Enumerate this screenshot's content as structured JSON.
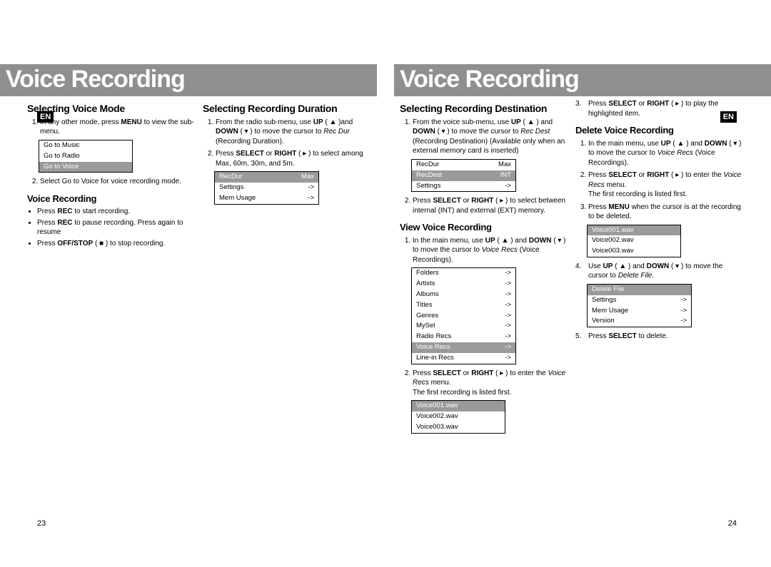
{
  "header": "Voice Recording",
  "en_badge": "EN",
  "page_left": "23",
  "page_right": "24",
  "sec_voice_mode": {
    "title": "Selecting Voice Mode",
    "steps": [
      "In any other mode, press <b>MENU</b> to view the sub-menu.",
      "Select Go to Voice for voice recording mode."
    ],
    "menu": [
      "Go to Music",
      "Go to Radio",
      "Go to Voice"
    ],
    "menu_highlight_index": 2
  },
  "sec_voice_rec": {
    "title": "Voice Recording",
    "bullets": [
      "Press <b>REC</b> to start recording.",
      "Press <b>REC</b> to pause recording. Press again to resume",
      "Press <b>OFF/STOP</b> ( ■ )  to stop recording."
    ]
  },
  "sec_rec_dur": {
    "title": "Selecting Recording Duration",
    "steps": [
      "From the radio sub-menu, use <b>UP</b> ( ▲ )and <b>DOWN</b> ( ▾ ) to move the cursor to <i>Rec Dur</i> (Recording Duration).",
      "Press <b>SELECT</b> or <b>RIGHT</b> ( ▸ ) to select among Max, 60m, 30m, and 5m."
    ],
    "menu": [
      {
        "l": "RecDur",
        "r": "Max",
        "hl": true
      },
      {
        "l": "Settings",
        "r": "->"
      },
      {
        "l": "Mem Usage",
        "r": "->"
      }
    ]
  },
  "sec_rec_dest": {
    "title": "Selecting Recording Destination",
    "steps": [
      "From the voice sub-menu, use <b>UP</b> ( ▲ ) and <b>DOWN</b> ( ▾ ) to move the cursor to <i>Rec Dest</i> (Recording Destination) (Available only when an external memory card is inserted)",
      "Press <b>SELECT</b> or <b>RIGHT</b> ( ▸ ) to select between internal (INT) and external (EXT) memory."
    ],
    "menu": [
      {
        "l": "RecDur",
        "r": "Max"
      },
      {
        "l": "RecDest",
        "r": "INT",
        "hl": true
      },
      {
        "l": "Settings",
        "r": "->"
      }
    ]
  },
  "sec_view": {
    "title": "View Voice Recording",
    "steps": [
      "In the main menu, use <b>UP</b> ( ▲ ) and <b>DOWN</b> ( ▾ ) to move the cursor to <i>Voice Recs</i> (Voice Recordings).",
      "Press <b>SELECT</b> or <b>RIGHT</b> ( ▸ ) to enter the <i>Voice Recs</i> menu.<br>The first recording is listed first."
    ],
    "menu1": [
      {
        "l": "Folders",
        "r": "->"
      },
      {
        "l": "Artists",
        "r": "->"
      },
      {
        "l": "Albums",
        "r": "->"
      },
      {
        "l": "Titles",
        "r": "->"
      },
      {
        "l": "Genres",
        "r": "->"
      },
      {
        "l": "MySel",
        "r": "->"
      },
      {
        "l": "Radio Recs",
        "r": "->"
      },
      {
        "l": "Voice Recs",
        "r": "->",
        "hl": true
      },
      {
        "l": "Line-in Recs",
        "r": "->"
      }
    ],
    "menu2": [
      {
        "l": "Voice001.wav",
        "hl": true
      },
      {
        "l": "Voice002.wav"
      },
      {
        "l": "Voice003.wav"
      }
    ]
  },
  "sec_r2top": {
    "step3": "Press <b>SELECT</b> or <b>RIGHT</b> ( ▸ ) to play the highlighted item."
  },
  "sec_delete": {
    "title": "Delete Voice Recording",
    "steps": [
      "In the main menu, use <b>UP</b> ( ▲ ) and <b>DOWN</b> ( ▾ ) to move the cursor to <i>Voice Recs</i> (Voice Recordings).",
      "Press <b>SELECT</b> or <b>RIGHT</b> ( ▸ ) to enter the <i>Voice Recs</i> menu.<br>The first recording is listed first.",
      "Press <b>MENU</b> when the cursor is at the recording to be deleted."
    ],
    "menu1": [
      {
        "l": "Voice001.wav",
        "hl": true
      },
      {
        "l": "Voice002.wav"
      },
      {
        "l": "Voice003.wav"
      }
    ],
    "step4": "Use <b>UP</b> ( ▲ ) and <b>DOWN</b> ( ▾ ) to move the cursor to <i>Delete File</i>.",
    "menu2": [
      {
        "l": "Delete File",
        "r": "",
        "hl": true
      },
      {
        "l": "Settings",
        "r": "->"
      },
      {
        "l": "Mem Usage",
        "r": "->"
      },
      {
        "l": "Version",
        "r": "->"
      }
    ],
    "step5": "Press <b>SELECT</b> to delete."
  }
}
